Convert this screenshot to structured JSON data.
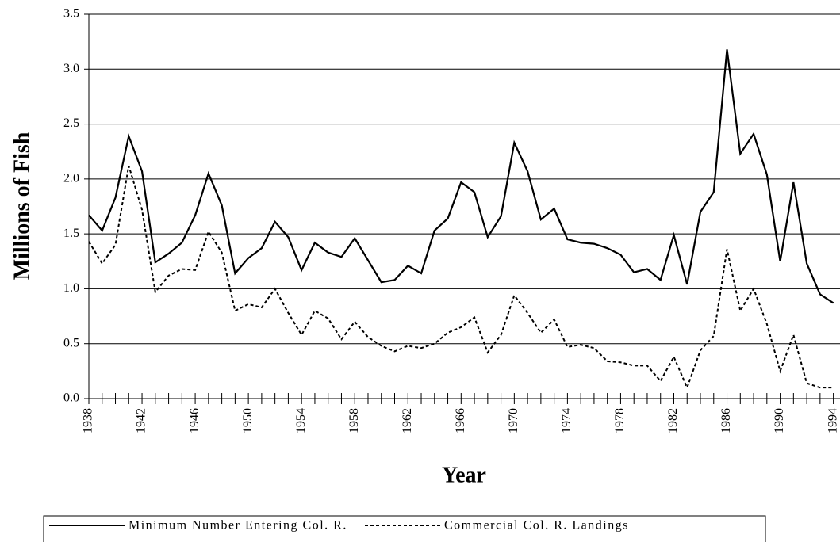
{
  "chart_data": {
    "type": "line",
    "x": [
      1938,
      1939,
      1940,
      1941,
      1942,
      1943,
      1944,
      1945,
      1946,
      1947,
      1948,
      1949,
      1950,
      1951,
      1952,
      1953,
      1954,
      1955,
      1956,
      1957,
      1958,
      1959,
      1960,
      1961,
      1962,
      1963,
      1964,
      1965,
      1966,
      1967,
      1968,
      1969,
      1970,
      1971,
      1972,
      1973,
      1974,
      1975,
      1976,
      1977,
      1978,
      1979,
      1980,
      1981,
      1982,
      1983,
      1984,
      1985,
      1986,
      1987,
      1988,
      1989,
      1990,
      1991,
      1992,
      1993,
      1994
    ],
    "series": [
      {
        "name": "Minimum Number Entering Col. R.",
        "color": "#000000",
        "dashed": false,
        "values": [
          1.67,
          1.53,
          1.83,
          2.39,
          2.07,
          1.24,
          1.32,
          1.42,
          1.67,
          2.05,
          1.76,
          1.14,
          1.28,
          1.37,
          1.61,
          1.47,
          1.17,
          1.42,
          1.33,
          1.29,
          1.46,
          1.26,
          1.06,
          1.08,
          1.21,
          1.14,
          1.53,
          1.64,
          1.97,
          1.88,
          1.47,
          1.66,
          2.33,
          2.07,
          1.63,
          1.73,
          1.45,
          1.42,
          1.41,
          1.37,
          1.31,
          1.15,
          1.18,
          1.08,
          1.49,
          1.04,
          1.7,
          1.88,
          3.18,
          2.23,
          2.41,
          2.04,
          1.25,
          1.97,
          1.23,
          0.95,
          0.87
        ]
      },
      {
        "name": "Commercial Col. R. Landings",
        "color": "#000000",
        "dashed": true,
        "values": [
          1.43,
          1.23,
          1.4,
          2.12,
          1.72,
          0.97,
          1.12,
          1.18,
          1.17,
          1.52,
          1.33,
          0.8,
          0.86,
          0.83,
          1.0,
          0.78,
          0.58,
          0.8,
          0.73,
          0.54,
          0.7,
          0.56,
          0.48,
          0.43,
          0.48,
          0.46,
          0.5,
          0.6,
          0.65,
          0.74,
          0.42,
          0.58,
          0.94,
          0.78,
          0.6,
          0.72,
          0.47,
          0.49,
          0.46,
          0.34,
          0.33,
          0.3,
          0.3,
          0.16,
          0.38,
          0.1,
          0.44,
          0.57,
          1.36,
          0.8,
          1.0,
          0.68,
          0.25,
          0.58,
          0.14,
          0.1,
          0.1
        ]
      }
    ],
    "xlabel": "Year",
    "ylabel": "Millions of Fish",
    "xlim": [
      1938,
      1994.5
    ],
    "xticks": [
      1938,
      1942,
      1946,
      1950,
      1954,
      1958,
      1962,
      1966,
      1970,
      1974,
      1978,
      1982,
      1986,
      1990,
      1994
    ],
    "ylim": [
      0,
      3.5
    ],
    "yticks": [
      {
        "value": 0,
        "label": "0.0"
      },
      0.5,
      {
        "value": 1,
        "label": "1.0"
      },
      1.5,
      {
        "value": 2,
        "label": "2.0"
      },
      2.5,
      {
        "value": 3,
        "label": "3.0"
      },
      3.5
    ],
    "grid": true
  }
}
